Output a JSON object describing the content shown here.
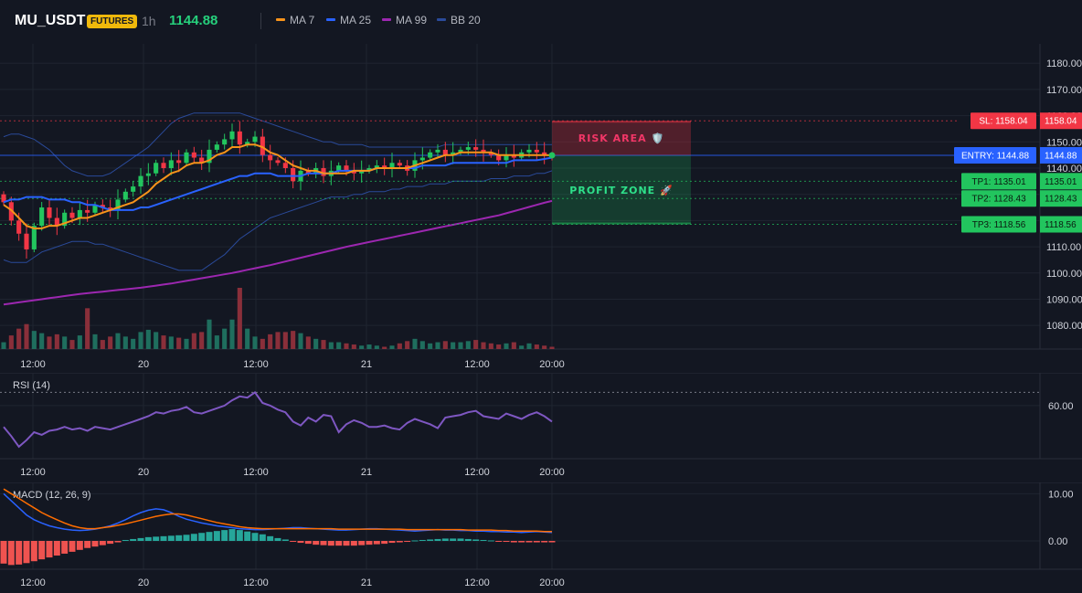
{
  "header": {
    "symbol": "MU_USDT",
    "badge": "FUTURES",
    "timeframe": "1h",
    "price": "1144.88",
    "legend": [
      {
        "label": "MA 7",
        "color": "#f7931a"
      },
      {
        "label": "MA 25",
        "color": "#2962ff"
      },
      {
        "label": "MA 99",
        "color": "#9c27b0"
      },
      {
        "label": "BB 20",
        "color": "#2a4a9a"
      }
    ]
  },
  "colors": {
    "up": "#22c55e",
    "down": "#f23645",
    "vol_up": "#1f6e5e",
    "vol_down": "#8a2f3a",
    "grid": "#1f2430"
  },
  "chart_data": [
    {
      "type": "candlestick",
      "title": "",
      "x_ticks": [
        "12:00",
        "20",
        "12:00",
        "21",
        "12:00",
        "20:00"
      ],
      "y_ticks": [
        1080,
        1090,
        1100,
        1110,
        1120,
        1130,
        1140,
        1150,
        1160,
        1170,
        1180
      ],
      "ylim": [
        1071,
        1186
      ],
      "levels": [
        {
          "name": "SL",
          "price": 1158.04,
          "label": "SL: 1158.04",
          "value_label": "1158.04",
          "color": "#f23645"
        },
        {
          "name": "ENTRY",
          "price": 1144.88,
          "label": "ENTRY: 1144.88",
          "value_label": "1144.88",
          "color": "#2962ff"
        },
        {
          "name": "TP1",
          "price": 1135.01,
          "label": "TP1: 1135.01",
          "value_label": "1135.01",
          "color": "#22c55e"
        },
        {
          "name": "TP2",
          "price": 1128.43,
          "label": "TP2: 1128.43",
          "value_label": "1128.43",
          "color": "#22c55e"
        },
        {
          "name": "TP3",
          "price": 1118.56,
          "label": "TP3: 1118.56",
          "value_label": "1118.56",
          "color": "#22c55e"
        }
      ],
      "zones": [
        {
          "label": "RISK AREA 🛡️",
          "from": 1144.88,
          "to": 1158.04,
          "color": "#f23645"
        },
        {
          "label": "PROFIT ZONE 🚀",
          "from": 1118.56,
          "to": 1144.88,
          "color": "#22c55e"
        }
      ],
      "closes": [
        1127,
        1120,
        1115,
        1109,
        1118,
        1125,
        1121,
        1118,
        1123,
        1121,
        1124,
        1123,
        1126,
        1125,
        1124,
        1128,
        1131,
        1133,
        1137,
        1138,
        1142,
        1140,
        1143,
        1142,
        1146,
        1144,
        1142,
        1147,
        1149,
        1151,
        1154,
        1149,
        1150,
        1152,
        1145,
        1143,
        1142,
        1140,
        1135,
        1139,
        1138,
        1140,
        1137,
        1139,
        1141,
        1139,
        1138,
        1139,
        1140,
        1141,
        1140,
        1142,
        1141,
        1139,
        1143,
        1144,
        1146,
        1147,
        1145,
        1146,
        1147,
        1148,
        1147,
        1146,
        1145,
        1143,
        1145,
        1144,
        1146,
        1147,
        1146,
        1145,
        1144
      ],
      "ma7": [
        1126,
        1124,
        1121,
        1118,
        1117,
        1117,
        1118,
        1118,
        1119,
        1120,
        1121,
        1121,
        1122,
        1123,
        1124,
        1125,
        1126,
        1127,
        1129,
        1131,
        1134,
        1136,
        1138,
        1139,
        1141,
        1142,
        1142,
        1143,
        1145,
        1146,
        1148,
        1148,
        1149,
        1149,
        1148,
        1146,
        1145,
        1143,
        1141,
        1140,
        1139,
        1139,
        1138,
        1138,
        1138,
        1138,
        1139,
        1139,
        1139,
        1140,
        1140,
        1140,
        1140,
        1140,
        1141,
        1142,
        1143,
        1144,
        1145,
        1145,
        1146,
        1146,
        1146,
        1146,
        1146,
        1145,
        1145,
        1145,
        1145,
        1145,
        1145,
        1145,
        1144.9
      ],
      "ma25": [
        1127,
        1128,
        1128,
        1129,
        1129,
        1129,
        1128,
        1128,
        1128,
        1127,
        1127,
        1126,
        1126,
        1125,
        1124,
        1124,
        1124,
        1124,
        1125,
        1125,
        1126,
        1127,
        1128,
        1129,
        1130,
        1131,
        1132,
        1133,
        1134,
        1135,
        1136,
        1137,
        1137,
        1138,
        1138,
        1138,
        1137,
        1137,
        1137,
        1137,
        1138,
        1138,
        1138,
        1138,
        1139,
        1139,
        1139,
        1139,
        1139,
        1140,
        1140,
        1140,
        1140,
        1140,
        1140,
        1141,
        1141,
        1141,
        1141,
        1142,
        1142,
        1142,
        1142,
        1142,
        1142,
        1142,
        1142,
        1143,
        1143,
        1143,
        1143,
        1143.5,
        1144
      ],
      "ma99": [
        1088,
        1088.4,
        1088.8,
        1089.2,
        1089.6,
        1090,
        1090.4,
        1090.8,
        1091.2,
        1091.6,
        1092,
        1092.3,
        1092.6,
        1092.9,
        1093.2,
        1093.5,
        1093.8,
        1094.1,
        1094.4,
        1094.8,
        1095.2,
        1095.6,
        1096,
        1096.5,
        1097,
        1097.5,
        1098,
        1098.5,
        1099,
        1099.5,
        1100,
        1100.6,
        1101.2,
        1101.8,
        1102.4,
        1103,
        1103.7,
        1104.4,
        1105.1,
        1105.8,
        1106.5,
        1107.2,
        1107.9,
        1108.6,
        1109.3,
        1110,
        1110.6,
        1111.2,
        1111.8,
        1112.4,
        1113,
        1113.6,
        1114.2,
        1114.8,
        1115.4,
        1116,
        1116.6,
        1117.2,
        1117.8,
        1118.4,
        1119,
        1119.6,
        1120.2,
        1120.8,
        1121.4,
        1122,
        1122.8,
        1123.6,
        1124.4,
        1125.2,
        1126,
        1126.8,
        1127.5
      ],
      "bb_upper": [
        1152,
        1153,
        1153,
        1152,
        1151,
        1149,
        1147,
        1144,
        1141,
        1139,
        1138,
        1137,
        1137,
        1137,
        1138,
        1140,
        1142,
        1144,
        1146,
        1148,
        1151,
        1154,
        1157,
        1159,
        1160,
        1161,
        1161,
        1161,
        1161,
        1161,
        1161,
        1161,
        1160,
        1159,
        1158,
        1157,
        1156,
        1155,
        1154,
        1153,
        1152,
        1151,
        1150,
        1150,
        1149,
        1149,
        1149,
        1149,
        1148,
        1148,
        1148,
        1148,
        1148,
        1148,
        1148,
        1148,
        1148,
        1148,
        1149,
        1149,
        1149,
        1149,
        1149,
        1149,
        1149,
        1149,
        1149,
        1149,
        1149,
        1149,
        1149,
        1149,
        1149
      ],
      "bb_lower": [
        1105,
        1104,
        1104,
        1104,
        1106,
        1108,
        1109,
        1110,
        1111,
        1112,
        1112,
        1112,
        1111,
        1111,
        1110,
        1109,
        1108,
        1107,
        1106,
        1105,
        1104,
        1103,
        1102,
        1101,
        1101,
        1101,
        1101,
        1103,
        1105,
        1107,
        1110,
        1113,
        1115,
        1117,
        1119,
        1121,
        1122,
        1123,
        1124,
        1125,
        1126,
        1127,
        1128,
        1129,
        1129,
        1129,
        1130,
        1130,
        1131,
        1131,
        1131,
        1132,
        1132,
        1133,
        1133,
        1133,
        1134,
        1134,
        1134,
        1135,
        1135,
        1135,
        1135,
        1135,
        1136,
        1136,
        1136,
        1137,
        1137,
        1137,
        1138,
        1138,
        1139
      ],
      "volume": [
        30,
        60,
        90,
        110,
        80,
        70,
        55,
        65,
        55,
        40,
        60,
        180,
        65,
        40,
        55,
        70,
        55,
        45,
        75,
        85,
        75,
        60,
        55,
        50,
        45,
        70,
        75,
        130,
        60,
        90,
        130,
        270,
        90,
        55,
        45,
        65,
        75,
        75,
        80,
        70,
        55,
        45,
        40,
        30,
        30,
        25,
        20,
        15,
        20,
        15,
        10,
        15,
        25,
        35,
        45,
        35,
        25,
        30,
        35,
        30,
        30,
        35,
        40,
        30,
        25,
        20,
        25,
        30,
        15,
        25,
        20,
        15,
        10
      ]
    },
    {
      "type": "line",
      "title": "RSI (14)",
      "y_ticks": [
        60
      ],
      "ylim": [
        20,
        82
      ],
      "overbought": 70,
      "values": [
        44,
        37,
        29,
        34,
        40,
        38,
        41,
        42,
        44,
        42,
        43,
        41,
        44,
        43,
        42,
        44,
        46,
        48,
        50,
        52,
        55,
        54,
        56,
        57,
        59,
        55,
        54,
        56,
        58,
        60,
        64,
        67,
        66,
        70,
        62,
        60,
        57,
        55,
        48,
        45,
        51,
        48,
        53,
        52,
        40,
        46,
        49,
        47,
        44,
        44,
        45,
        43,
        42,
        47,
        50,
        48,
        46,
        43,
        51,
        52,
        53,
        55,
        56,
        52,
        51,
        50,
        54,
        52,
        50,
        53,
        55,
        52,
        48
      ]
    },
    {
      "type": "line",
      "title": "MACD (12, 26, 9)",
      "y_ticks": [
        10,
        0
      ],
      "ylim": [
        -6,
        12
      ],
      "macd": [
        10,
        8.5,
        7,
        5.5,
        4.5,
        3.8,
        3.2,
        2.8,
        2.5,
        2.3,
        2.2,
        2.3,
        2.5,
        2.8,
        3.2,
        3.8,
        4.5,
        5.3,
        6,
        6.5,
        6.8,
        6.6,
        6,
        5.2,
        4.6,
        4.2,
        3.8,
        3.5,
        3.2,
        3,
        2.8,
        2.6,
        2.5,
        2.4,
        2.4,
        2.5,
        2.6,
        2.7,
        2.8,
        2.8,
        2.7,
        2.6,
        2.5,
        2.4,
        2.3,
        2.3,
        2.4,
        2.5,
        2.6,
        2.6,
        2.5,
        2.4,
        2.3,
        2.2,
        2.1,
        2.2,
        2.3,
        2.4,
        2.3,
        2.3,
        2.2,
        2.2,
        2.1,
        2.1,
        2.0,
        2.0,
        1.9,
        1.9,
        1.8,
        1.9,
        2.0,
        1.9,
        1.8
      ],
      "signal": [
        11,
        10,
        9,
        8,
        7,
        6,
        5.2,
        4.5,
        3.8,
        3.2,
        2.8,
        2.6,
        2.6,
        2.8,
        3.0,
        3.3,
        3.6,
        4.0,
        4.4,
        4.8,
        5.2,
        5.5,
        5.7,
        5.7,
        5.5,
        5.1,
        4.7,
        4.3,
        3.9,
        3.6,
        3.3,
        3.0,
        2.8,
        2.7,
        2.6,
        2.6,
        2.6,
        2.6,
        2.6,
        2.6,
        2.6,
        2.6,
        2.6,
        2.6,
        2.5,
        2.5,
        2.5,
        2.5,
        2.5,
        2.5,
        2.5,
        2.5,
        2.5,
        2.4,
        2.4,
        2.4,
        2.4,
        2.4,
        2.4,
        2.4,
        2.4,
        2.3,
        2.3,
        2.3,
        2.3,
        2.2,
        2.2,
        2.1,
        2.1,
        2.1,
        2.1,
        2.0,
        2.0
      ],
      "histogram": [
        -4.8,
        -5.1,
        -5,
        -4.7,
        -4.3,
        -3.9,
        -3.5,
        -3.1,
        -2.7,
        -2.3,
        -1.9,
        -1.5,
        -1.2,
        -0.9,
        -0.6,
        -0.3,
        0.2,
        0.4,
        0.6,
        0.8,
        0.9,
        1.0,
        1.1,
        1.2,
        1.3,
        1.5,
        1.7,
        1.9,
        2.1,
        2.3,
        2.5,
        2.3,
        2.0,
        1.7,
        1.4,
        1.0,
        0.6,
        0.3,
        -0.2,
        -0.4,
        -0.6,
        -0.8,
        -0.9,
        -1.0,
        -1.0,
        -1.0,
        -1.0,
        -0.9,
        -0.8,
        -0.7,
        -0.6,
        -0.4,
        -0.3,
        -0.2,
        0.1,
        0.2,
        0.3,
        0.4,
        0.5,
        0.5,
        0.5,
        0.4,
        0.3,
        0.2,
        0.1,
        -0.1,
        -0.2,
        -0.3,
        -0.3,
        -0.3,
        -0.3,
        -0.3,
        -0.3
      ]
    }
  ]
}
